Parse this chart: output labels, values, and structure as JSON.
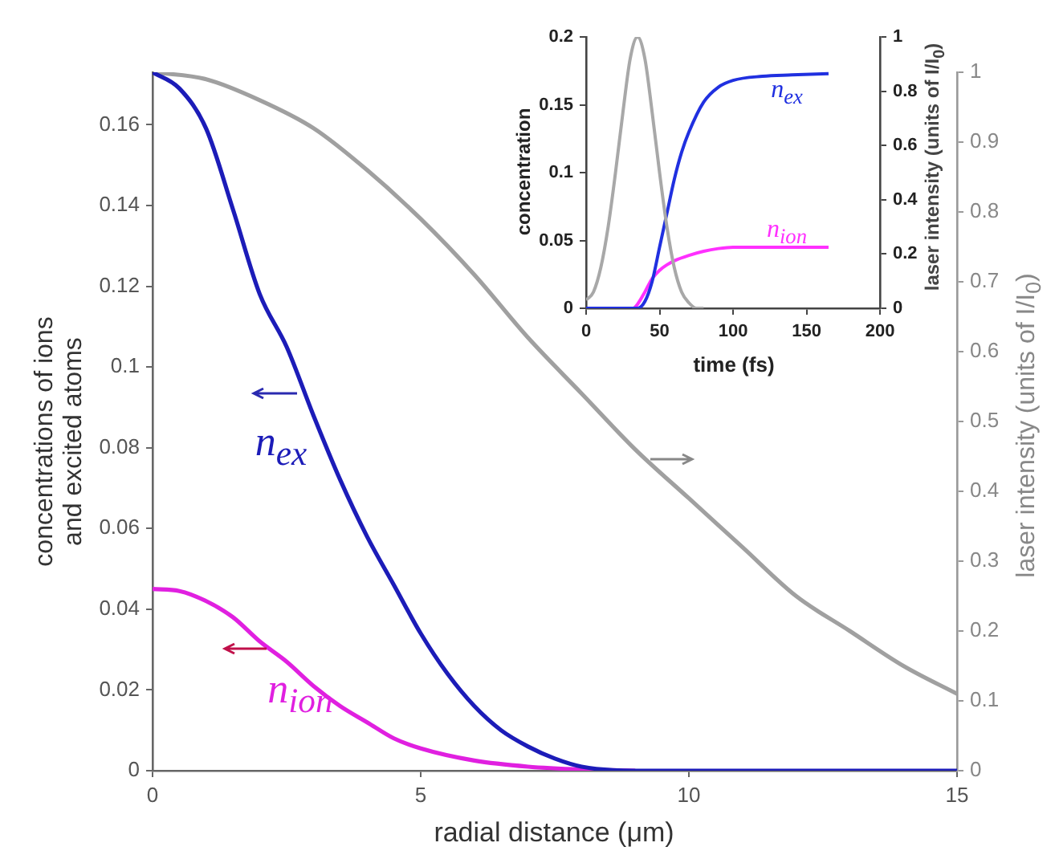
{
  "chart_data": [
    {
      "type": "line",
      "xlabel": "radial distance (μm)",
      "ylabel": "concentrations of ions\nand excited atoms",
      "y2label": "laser intensity (units of I/I$_{0}$)",
      "xlim": [
        0,
        15
      ],
      "xticks": [
        0,
        5,
        10,
        15
      ],
      "ylim": [
        0,
        0.173
      ],
      "yticks": [
        0,
        0.02,
        0.04,
        0.06,
        0.08,
        0.1,
        0.12,
        0.14,
        0.16
      ],
      "y2lim": [
        0,
        1
      ],
      "y2ticks": [
        0,
        0.1,
        0.2,
        0.3,
        0.4,
        0.5,
        0.6,
        0.7,
        0.8,
        0.9,
        1
      ],
      "series": [
        {
          "color": "#1c1cb8",
          "axis": "y",
          "x": [
            0,
            0.5,
            1,
            1.5,
            2,
            2.5,
            3,
            3.5,
            4,
            4.5,
            5,
            5.5,
            6,
            6.5,
            7,
            7.5,
            8,
            9,
            10,
            12,
            15
          ],
          "values": [
            0.173,
            0.169,
            0.159,
            0.139,
            0.118,
            0.105,
            0.088,
            0.072,
            0.058,
            0.046,
            0.034,
            0.024,
            0.016,
            0.01,
            0.006,
            0.003,
            0.001,
            0,
            0,
            0,
            0
          ]
        },
        {
          "color": "#e020e0",
          "axis": "y",
          "x": [
            0,
            0.5,
            1,
            1.5,
            2,
            2.5,
            3,
            3.5,
            4,
            4.5,
            5,
            6,
            7,
            8,
            9
          ],
          "values": [
            0.045,
            0.0445,
            0.042,
            0.038,
            0.032,
            0.027,
            0.021,
            0.016,
            0.012,
            0.008,
            0.0055,
            0.0025,
            0.001,
            0.0003,
            0
          ]
        },
        {
          "color": "#a0a0a0",
          "axis": "y2",
          "x": [
            0,
            1,
            2,
            3,
            4,
            5,
            6,
            7,
            8,
            9,
            10,
            11,
            12,
            13,
            14,
            15
          ],
          "values": [
            1,
            0.99,
            0.96,
            0.92,
            0.86,
            0.79,
            0.71,
            0.62,
            0.54,
            0.46,
            0.39,
            0.32,
            0.25,
            0.2,
            0.15,
            0.11
          ]
        }
      ],
      "annotations": [
        "n$_{ex}$",
        "n$_{ion}$"
      ]
    },
    {
      "type": "line",
      "xlabel": "time (fs)",
      "ylabel": "concentration",
      "y2label": "laser intensity (units of I/I$_{0}$)",
      "xlim": [
        0,
        200
      ],
      "xticks": [
        0,
        50,
        100,
        150,
        200
      ],
      "ylim": [
        0,
        0.2
      ],
      "yticks": [
        0,
        0.05,
        0.1,
        0.15,
        0.2
      ],
      "y2lim": [
        0,
        1
      ],
      "y2ticks": [
        0,
        0.2,
        0.4,
        0.6,
        0.8,
        1
      ],
      "series": [
        {
          "color": "#a8a8a8",
          "axis": "y2",
          "x": [
            0,
            5,
            10,
            15,
            20,
            25,
            30,
            35,
            40,
            45,
            50,
            55,
            60,
            65,
            70,
            75,
            80
          ],
          "values": [
            0.03,
            0.06,
            0.15,
            0.3,
            0.5,
            0.72,
            0.92,
            1,
            0.92,
            0.72,
            0.5,
            0.3,
            0.15,
            0.06,
            0.02,
            0,
            0
          ]
        },
        {
          "color": "#2030e0",
          "axis": "y",
          "x": [
            0,
            35,
            40,
            45,
            50,
            55,
            60,
            65,
            70,
            80,
            90,
            100,
            120,
            140,
            165
          ],
          "values": [
            0,
            0,
            0.005,
            0.02,
            0.045,
            0.07,
            0.095,
            0.115,
            0.13,
            0.152,
            0.163,
            0.168,
            0.171,
            0.172,
            0.173
          ]
        },
        {
          "color": "#ff30ff",
          "axis": "y",
          "x": [
            0,
            32,
            35,
            40,
            45,
            50,
            55,
            60,
            70,
            80,
            90,
            100,
            165
          ],
          "values": [
            0,
            0,
            0.003,
            0.012,
            0.022,
            0.028,
            0.032,
            0.035,
            0.039,
            0.042,
            0.044,
            0.045,
            0.045
          ]
        }
      ],
      "annotations": [
        "n$_{ex}$",
        "n$_{ion}$"
      ]
    }
  ]
}
